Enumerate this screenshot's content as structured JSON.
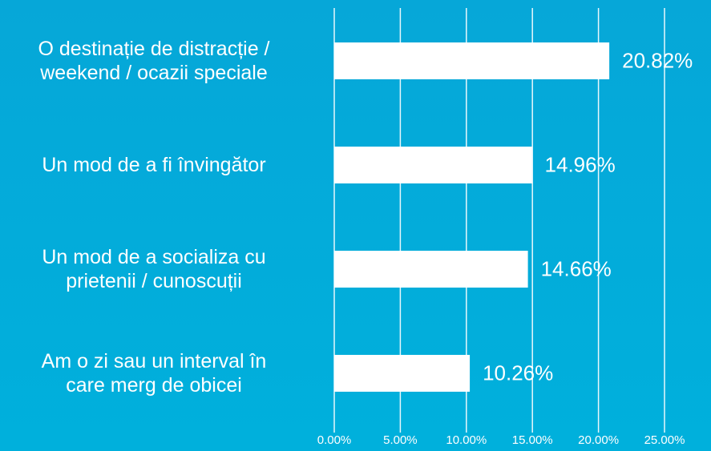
{
  "chart_data": {
    "type": "bar",
    "orientation": "horizontal",
    "categories": [
      "O destinație de distracție /\nweekend / ocazii speciale",
      "Un mod de a fi învingător",
      "Un mod de a socializa cu\nprietenii / cunoscuții",
      "Am o zi sau un interval în\ncare merg de obicei"
    ],
    "values": [
      20.82,
      14.96,
      14.66,
      10.26
    ],
    "value_labels": [
      "20.82%",
      "14.96%",
      "14.66%",
      "10.26%"
    ],
    "color": "#ffffff",
    "xlim": [
      0,
      25
    ],
    "xticks": [
      {
        "value": 0,
        "label": "0.00%"
      },
      {
        "value": 5,
        "label": "5.00%"
      },
      {
        "value": 10,
        "label": "10.00%"
      },
      {
        "value": 15,
        "label": "15.00%"
      },
      {
        "value": 20,
        "label": "20.00%"
      },
      {
        "value": 25,
        "label": "25.00%"
      }
    ],
    "grid": true
  }
}
